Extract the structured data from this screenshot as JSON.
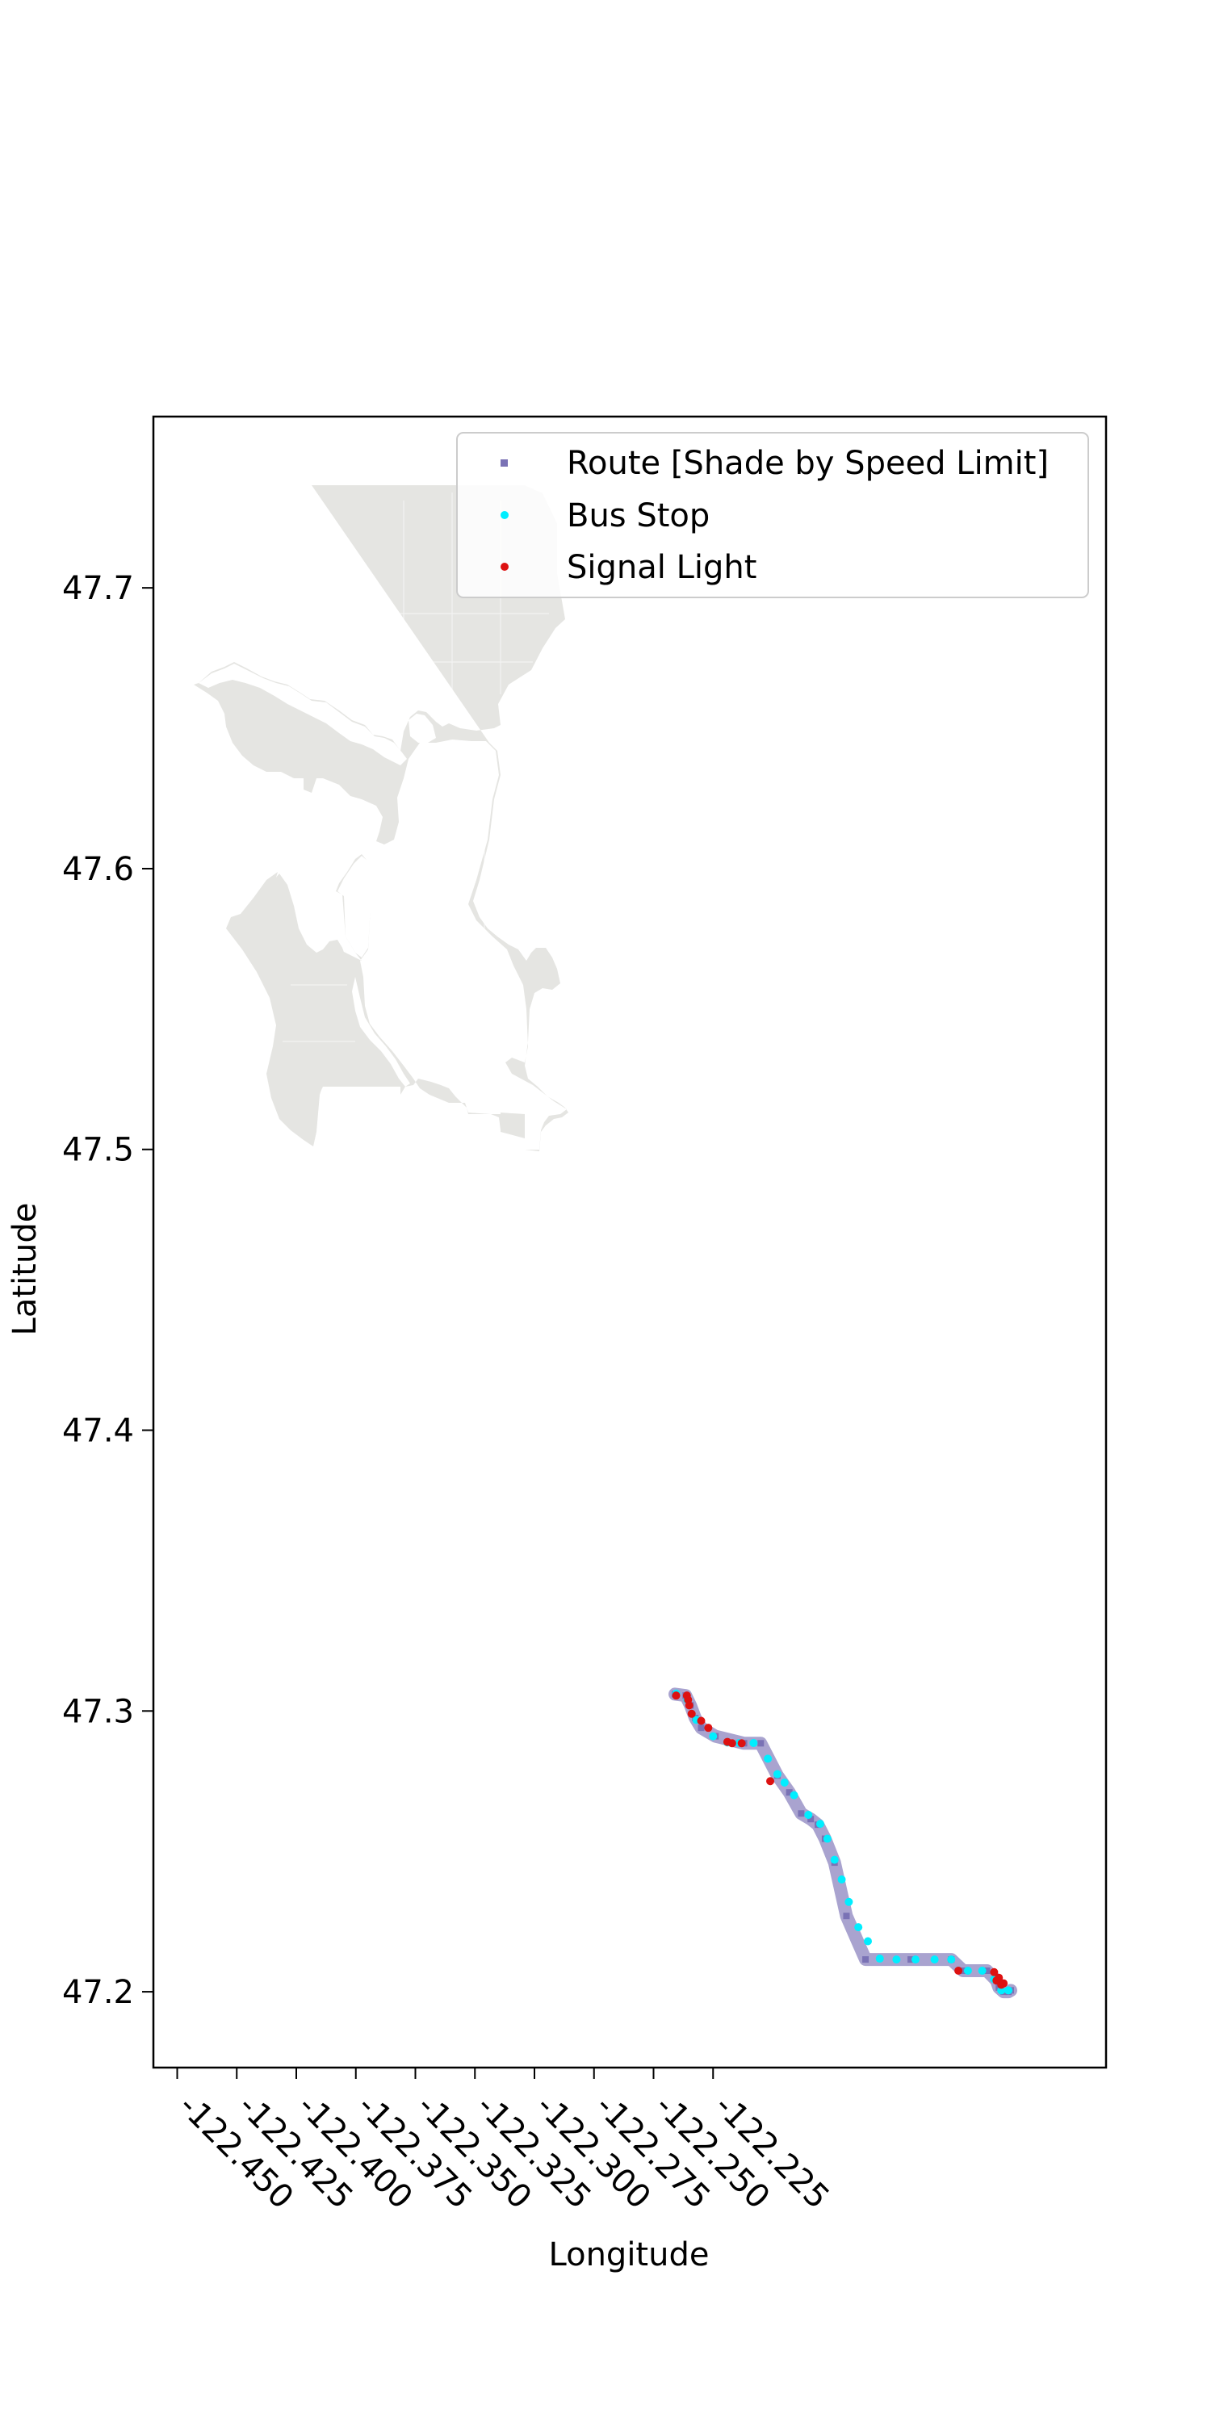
{
  "chart_data": {
    "type": "scatter",
    "title": "",
    "xlabel": "Longitude",
    "ylabel": "Latitude",
    "xlim": [
      -122.46,
      -122.06
    ],
    "ylim": [
      47.173,
      47.761
    ],
    "x_ticks": [
      -122.45,
      -122.425,
      -122.4,
      -122.375,
      -122.35,
      -122.325,
      -122.3,
      -122.275,
      -122.25,
      -122.225
    ],
    "x_tick_labels": [
      "-122.450",
      "-122.425",
      "-122.400",
      "-122.375",
      "-122.350",
      "-122.325",
      "-122.300",
      "-122.275",
      "-122.250",
      "-122.225"
    ],
    "y_ticks": [
      47.2,
      47.3,
      47.4,
      47.5,
      47.6,
      47.7
    ],
    "y_tick_labels": [
      "47.2",
      "47.3",
      "47.4",
      "47.5",
      "47.6",
      "47.7"
    ],
    "grid": false,
    "legend_position": "top-right",
    "basemap": {
      "name": "Seattle city boundary",
      "color": "#e5e5e2"
    },
    "series": [
      {
        "name": "Route [Shade by Speed Limit]",
        "color": "#a9a3cf",
        "marker_color": "#7a72b5",
        "x": [
          -122.241,
          -122.2365,
          -122.2345,
          -122.2325,
          -122.23,
          -122.224,
          -122.212,
          -122.205,
          -122.198,
          -122.193,
          -122.188,
          -122.184,
          -122.181,
          -122.178,
          -122.174,
          -122.169,
          -122.161,
          -122.142,
          -122.125,
          -122.12,
          -122.11,
          -122.106,
          -122.105,
          -122.103,
          -122.101,
          -122.1
        ],
        "y": [
          47.306,
          47.3055,
          47.302,
          47.2975,
          47.294,
          47.291,
          47.2885,
          47.2885,
          47.277,
          47.271,
          47.2635,
          47.2615,
          47.2595,
          47.2545,
          47.246,
          47.227,
          47.2115,
          47.2115,
          47.2115,
          47.2075,
          47.2075,
          47.204,
          47.2015,
          47.2,
          47.2,
          47.2005
        ]
      },
      {
        "name": "Bus Stop",
        "color": "#00eeff",
        "x": [
          -122.2405,
          -122.2358,
          -122.232,
          -122.225,
          -122.219,
          -122.214,
          -122.208,
          -122.202,
          -122.198,
          -122.195,
          -122.191,
          -122.185,
          -122.18,
          -122.177,
          -122.174,
          -122.171,
          -122.168,
          -122.164,
          -122.16,
          -122.155,
          -122.148,
          -122.14,
          -122.132,
          -122.125,
          -122.118,
          -122.112,
          -122.107,
          -122.104,
          -122.101
        ],
        "y": [
          47.3062,
          47.304,
          47.2968,
          47.291,
          47.2888,
          47.2886,
          47.2886,
          47.283,
          47.2775,
          47.2745,
          47.27,
          47.263,
          47.2598,
          47.2545,
          47.247,
          47.24,
          47.232,
          47.223,
          47.218,
          47.2118,
          47.2115,
          47.2115,
          47.2115,
          47.2115,
          47.2075,
          47.2075,
          47.2045,
          47.2005,
          47.2005
        ]
      },
      {
        "name": "Signal Light",
        "color": "#dd1111",
        "x": [
          -122.2405,
          -122.236,
          -122.2355,
          -122.235,
          -122.234,
          -122.23,
          -122.227,
          -122.219,
          -122.217,
          -122.213,
          -122.201,
          -122.122,
          -122.107,
          -122.106,
          -122.105,
          -122.104,
          -122.103
        ],
        "y": [
          47.3055,
          47.3055,
          47.304,
          47.302,
          47.299,
          47.2965,
          47.294,
          47.289,
          47.2885,
          47.2885,
          47.275,
          47.2075,
          47.207,
          47.204,
          47.205,
          47.2025,
          47.203
        ]
      }
    ]
  }
}
